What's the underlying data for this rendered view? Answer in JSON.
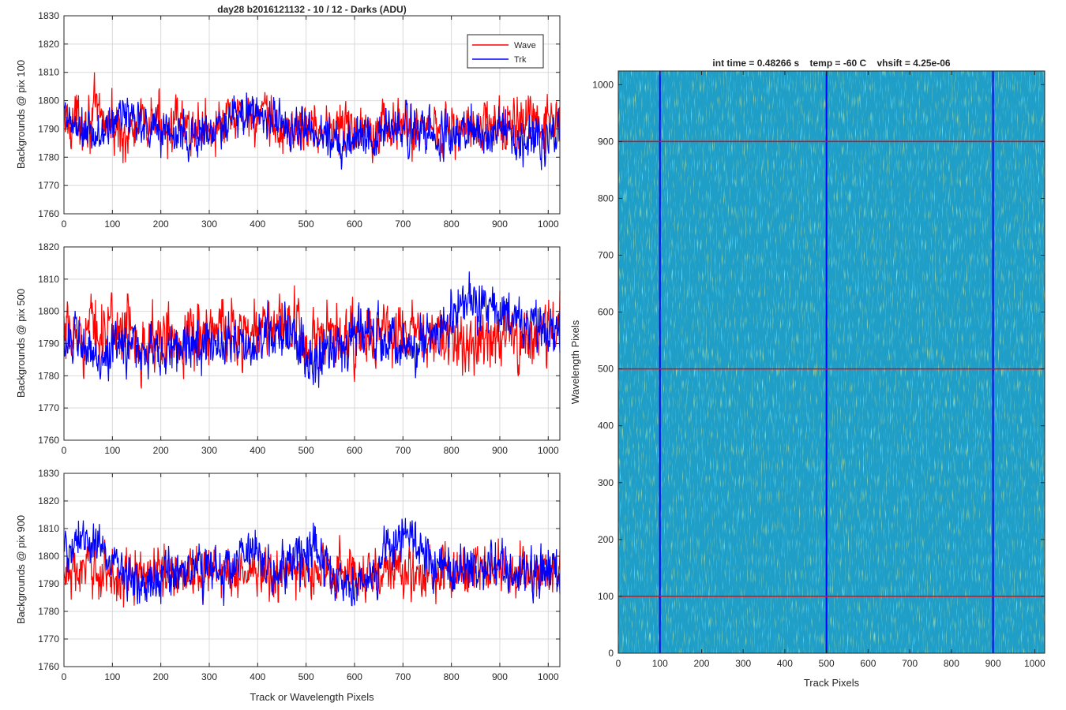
{
  "colors": {
    "wave": "#ff0000",
    "trk": "#0000ff",
    "grid": "#d9d9d9",
    "axis": "#262626",
    "image_base": "#1f9ec8"
  },
  "chart_data": [
    {
      "type": "line",
      "title": "day28 b2016121132 - 10 / 12 - Darks (ADU)",
      "ylabel": "Backgrounds @ pix 100",
      "xlabel": "",
      "xlim": [
        0,
        1024
      ],
      "ylim": [
        1760,
        1830
      ],
      "xticks": [
        0,
        100,
        200,
        300,
        400,
        500,
        600,
        700,
        800,
        900,
        1000
      ],
      "yticks": [
        1760,
        1770,
        1780,
        1790,
        1800,
        1810,
        1820,
        1830
      ],
      "grid": true,
      "legend": {
        "position": "top-right",
        "entries": [
          "Wave",
          "Trk"
        ]
      },
      "series": [
        {
          "name": "Wave",
          "color": "#ff0000",
          "mean": 1791,
          "noise": 6.5,
          "x": [
            0,
            64,
            128,
            192,
            256,
            320,
            384,
            448,
            512,
            576,
            640,
            704,
            768,
            832,
            896,
            960,
            1024
          ],
          "values": [
            1792,
            1795,
            1788,
            1793,
            1790,
            1791,
            1796,
            1789,
            1791,
            1790,
            1792,
            1790,
            1791,
            1790,
            1791,
            1792,
            1791
          ]
        },
        {
          "name": "Trk",
          "color": "#0000ff",
          "mean": 1789,
          "noise": 5.5,
          "x": [
            0,
            64,
            128,
            192,
            256,
            320,
            384,
            448,
            512,
            576,
            640,
            704,
            768,
            832,
            896,
            960,
            1024
          ],
          "values": [
            1793,
            1786,
            1796,
            1790,
            1787,
            1789,
            1797,
            1792,
            1789,
            1786,
            1789,
            1790,
            1787,
            1789,
            1789,
            1786,
            1790
          ]
        }
      ]
    },
    {
      "type": "line",
      "title": "",
      "ylabel": "Backgrounds @ pix 500",
      "xlabel": "",
      "xlim": [
        0,
        1024
      ],
      "ylim": [
        1760,
        1820
      ],
      "xticks": [
        0,
        100,
        200,
        300,
        400,
        500,
        600,
        700,
        800,
        900,
        1000
      ],
      "yticks": [
        1760,
        1770,
        1780,
        1790,
        1800,
        1810,
        1820
      ],
      "grid": true,
      "series": [
        {
          "name": "Wave",
          "color": "#ff0000",
          "mean": 1793,
          "noise": 7,
          "x": [
            0,
            64,
            128,
            192,
            256,
            320,
            384,
            448,
            512,
            576,
            640,
            704,
            768,
            832,
            896,
            960,
            1024
          ],
          "values": [
            1790,
            1795,
            1794,
            1790,
            1793,
            1794,
            1794,
            1796,
            1789,
            1791,
            1792,
            1793,
            1791,
            1790,
            1793,
            1792,
            1795
          ]
        },
        {
          "name": "Trk",
          "color": "#0000ff",
          "mean": 1790,
          "noise": 5.5,
          "x": [
            0,
            64,
            128,
            192,
            256,
            320,
            384,
            448,
            512,
            576,
            640,
            704,
            768,
            832,
            896,
            960,
            1024
          ],
          "values": [
            1793,
            1785,
            1790,
            1787,
            1789,
            1791,
            1789,
            1795,
            1784,
            1792,
            1794,
            1789,
            1790,
            1803,
            1800,
            1795,
            1792
          ]
        }
      ]
    },
    {
      "type": "line",
      "title": "",
      "ylabel": "Backgrounds @ pix 900",
      "xlabel": "Track or Wavelength Pixels",
      "xlim": [
        0,
        1024
      ],
      "ylim": [
        1760,
        1830
      ],
      "xticks": [
        0,
        100,
        200,
        300,
        400,
        500,
        600,
        700,
        800,
        900,
        1000
      ],
      "yticks": [
        1760,
        1770,
        1780,
        1790,
        1800,
        1810,
        1820,
        1830
      ],
      "grid": true,
      "series": [
        {
          "name": "Wave",
          "color": "#ff0000",
          "mean": 1794,
          "noise": 6.5,
          "x": [
            0,
            64,
            128,
            192,
            256,
            320,
            384,
            448,
            512,
            576,
            640,
            704,
            768,
            832,
            896,
            960,
            1024
          ],
          "values": [
            1793,
            1795,
            1792,
            1794,
            1795,
            1794,
            1794,
            1793,
            1795,
            1795,
            1794,
            1794,
            1793,
            1795,
            1795,
            1794,
            1794
          ]
        },
        {
          "name": "Trk",
          "color": "#0000ff",
          "mean": 1796,
          "noise": 6,
          "x": [
            0,
            64,
            128,
            192,
            256,
            320,
            384,
            448,
            512,
            576,
            640,
            704,
            768,
            832,
            896,
            960,
            1024
          ],
          "values": [
            1802,
            1806,
            1793,
            1792,
            1795,
            1794,
            1801,
            1793,
            1805,
            1790,
            1793,
            1808,
            1795,
            1796,
            1796,
            1795,
            1795
          ]
        }
      ]
    },
    {
      "type": "heatmap",
      "title": "int time = 0.48266 s    temp = -60 C    vhsift = 4.25e-06",
      "xlabel": "Track Pixels",
      "ylabel": "Wavelength Pixels",
      "xlim": [
        0,
        1024
      ],
      "ylim": [
        0,
        1024
      ],
      "xticks": [
        0,
        100,
        200,
        300,
        400,
        500,
        600,
        700,
        800,
        900,
        1000
      ],
      "yticks": [
        0,
        100,
        200,
        300,
        400,
        500,
        600,
        700,
        800,
        900,
        1000
      ],
      "grid": false,
      "colormap": "parula",
      "vertical_lines": {
        "x": [
          100,
          500,
          900
        ],
        "color": "#0000ff"
      },
      "horizontal_lines": {
        "y": [
          100,
          500,
          900
        ],
        "color": "#ff0000"
      }
    }
  ]
}
